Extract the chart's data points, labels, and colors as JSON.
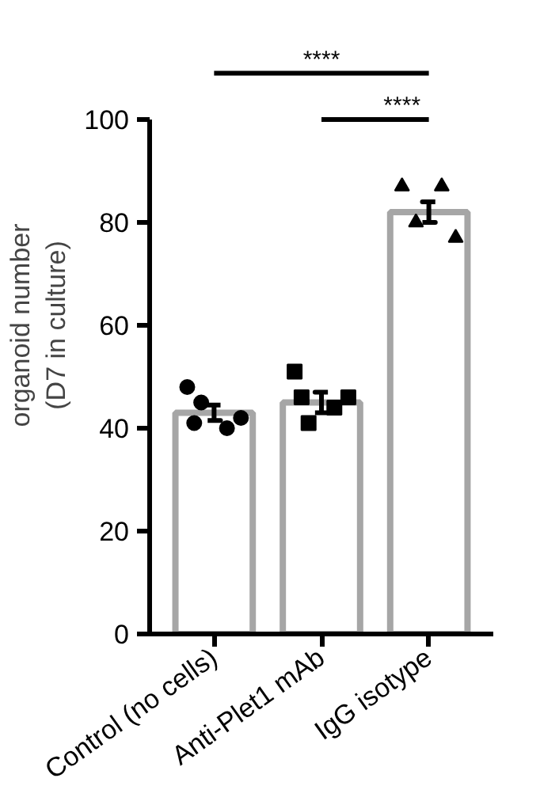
{
  "chart_data": {
    "type": "bar",
    "ylabel": "organoid number\n(D7 in culture)",
    "categories": [
      "Control (no cells)",
      "Anti-Plet1 mAb",
      "IgG isotype"
    ],
    "series": [
      {
        "color": "#a6a6a6",
        "values": [
          43,
          45,
          82
        ],
        "errors": [
          1.5,
          2,
          2
        ]
      },
      {
        "type": "scatter",
        "color": "#000000",
        "marker": "circle",
        "x": [
          "Control (no cells)",
          "Control (no cells)",
          "Control (no cells)",
          "Control (no cells)",
          "Control (no cells)"
        ],
        "values": [
          48,
          41,
          45,
          40,
          42
        ]
      },
      {
        "type": "scatter",
        "color": "#000000",
        "marker": "square",
        "x": [
          "Anti-Plet1 mAb",
          "Anti-Plet1 mAb",
          "Anti-Plet1 mAb",
          "Anti-Plet1 mAb",
          "Anti-Plet1 mAb"
        ],
        "values": [
          51,
          46,
          41,
          44,
          46
        ]
      },
      {
        "type": "scatter",
        "color": "#000000",
        "marker": "triangle",
        "x": [
          "IgG isotype",
          "IgG isotype",
          "IgG isotype",
          "IgG isotype"
        ],
        "values": [
          87,
          80,
          87,
          77
        ]
      }
    ],
    "ylim": [
      0,
      100
    ],
    "yticks": [
      0,
      20,
      40,
      60,
      80,
      100
    ],
    "annotations": [
      "****",
      "****"
    ]
  }
}
